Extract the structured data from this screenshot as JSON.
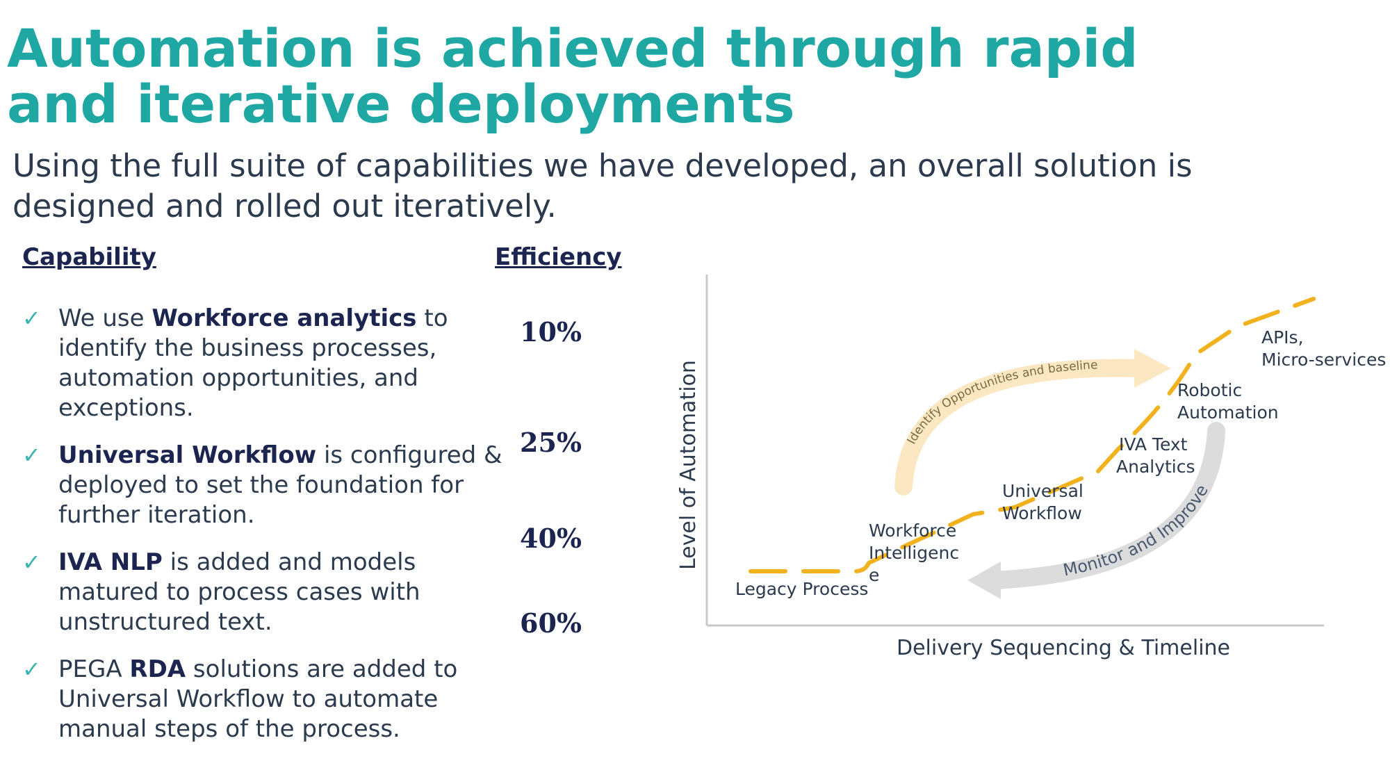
{
  "title": "Automation is achieved through rapid and iterative deployments",
  "subtitle": "Using the full suite of capabilities we have developed, an overall solution is designed and rolled out iteratively.",
  "columns": {
    "capability": "Capability",
    "efficiency": "Efficiency"
  },
  "check_glyph": "✓",
  "items": [
    {
      "pre": "We use ",
      "bold": "Workforce analytics",
      "post": " to identify the business processes, automation opportunities, and exceptions."
    },
    {
      "pre": "",
      "bold": "Universal Workflow",
      "post": " is configured  & deployed to set the foundation for further iteration."
    },
    {
      "pre": "",
      "bold": "IVA NLP",
      "post": " is added and models matured to process cases with unstructured text."
    },
    {
      "pre": "PEGA ",
      "bold": "RDA",
      "post": " solutions are added to Universal Workflow to automate manual steps of the process."
    }
  ],
  "efficiencies": [
    "10%",
    "25%",
    "40%",
    "60%"
  ],
  "diagram": {
    "y_axis_label": "Level of Automation",
    "x_axis_label": "Delivery Sequencing & Timeline",
    "stages": {
      "legacy": "Legacy Process",
      "workforce": [
        "Workforce",
        "Intelligenc",
        "e"
      ],
      "universal": [
        "Universal",
        "Workflow"
      ],
      "iva": [
        "IVA Text",
        "Analytics"
      ],
      "robotic": [
        "Robotic",
        "Automation"
      ],
      "apis": [
        "APIs,",
        "Micro-services"
      ]
    },
    "arrow_top_label": "Identify Opportunities and baseline",
    "arrow_bottom_label": "Monitor and Improve",
    "colors": {
      "dash": "#f2b21d",
      "arrow_top": "#fbe8c2",
      "arrow_bottom": "#dcdcdc",
      "accent": "#1fa8a3"
    }
  }
}
